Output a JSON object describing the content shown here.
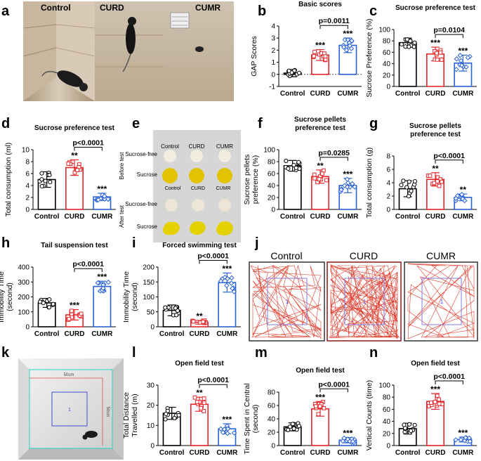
{
  "colors": {
    "control": "#000000",
    "curd": "#e8262a",
    "cumr": "#2a62d8",
    "track": "#e03a2a",
    "zone": "#7d7ddc",
    "gold": "#e8c000"
  },
  "figure": {
    "panel_letters": [
      "a",
      "b",
      "c",
      "d",
      "e",
      "f",
      "g",
      "h",
      "i",
      "j",
      "k",
      "l",
      "m",
      "n"
    ],
    "a": {
      "labels": [
        "Control",
        "CURD",
        "CUMR"
      ],
      "icon": "mouse-cage-photo"
    },
    "e": {
      "columns": [
        "Control",
        "CURD",
        "CUMR"
      ],
      "rows": [
        "Sucrose-free",
        "Sucrose",
        "Sucrose-free",
        "Sucrose"
      ],
      "groups": [
        "Before test",
        "After test"
      ],
      "icon": "sucrose-pellet-photo"
    },
    "j": {
      "labels": [
        "Control",
        "CURD",
        "CUMR"
      ],
      "zone_label": "1",
      "icon": "open-field-track"
    },
    "k": {
      "width_label": "50cm",
      "height_label": "50cm",
      "zone_label": "1",
      "icon": "open-field-arena-photo"
    }
  },
  "chart_data": [
    {
      "id": "b",
      "type": "bar",
      "title": "Basic  scores",
      "ylabel": "GAP Scores",
      "categories": [
        "Control",
        "CURD",
        "CUMR"
      ],
      "values": [
        0.1,
        1.6,
        2.4
      ],
      "errors": [
        0.3,
        0.45,
        0.6
      ],
      "ylim": [
        -1,
        4
      ],
      "yticks": [
        "-1",
        "0",
        "1",
        "2",
        "3",
        "4"
      ],
      "sig": [
        "",
        "***",
        "***"
      ],
      "bracket": {
        "label": "p=0.0011",
        "from": 1,
        "to": 2
      },
      "dotted_zero": true
    },
    {
      "id": "c",
      "type": "bar",
      "title": "Sucrose preference test",
      "ylabel": "Sucrose Preference (%)",
      "categories": [
        "Control",
        "CURD",
        "CUMR"
      ],
      "values": [
        77,
        57,
        41
      ],
      "errors": [
        8,
        12,
        14
      ],
      "ylim": [
        0,
        100
      ],
      "yticks": [
        "0",
        "20",
        "40",
        "60",
        "80",
        "100"
      ],
      "sig": [
        "",
        "***",
        "***"
      ],
      "bracket": {
        "label": "p=0.0104",
        "from": 1,
        "to": 2
      }
    },
    {
      "id": "d",
      "type": "bar",
      "title": "Sucrose preference test",
      "ylabel": "Total consumption (ml)",
      "categories": [
        "Control",
        "CURD",
        "CUMR"
      ],
      "values": [
        5.0,
        7.0,
        2.1
      ],
      "errors": [
        1.3,
        1.3,
        0.6
      ],
      "ylim": [
        0,
        10
      ],
      "yticks": [
        "0",
        "2",
        "4",
        "6",
        "8",
        "10"
      ],
      "sig": [
        "",
        "**",
        "***"
      ],
      "bracket": {
        "label": "p<0.0001",
        "from": 1,
        "to": 2
      }
    },
    {
      "id": "f",
      "type": "bar",
      "title": "Sucrose pellets\npreference test",
      "ylabel": "Sucrose pellets\npreference (%)",
      "categories": [
        "Control",
        "CURD",
        "CUMR"
      ],
      "values": [
        73,
        55,
        40
      ],
      "errors": [
        9,
        11,
        12
      ],
      "ylim": [
        0,
        100
      ],
      "yticks": [
        "0",
        "20",
        "40",
        "60",
        "80",
        "100"
      ],
      "sig": [
        "",
        "**",
        "***"
      ],
      "bracket": {
        "label": "p=0.0285",
        "from": 1,
        "to": 2
      }
    },
    {
      "id": "g",
      "type": "bar",
      "title": "Sucrose pellets\npreference test",
      "ylabel": "Total consumption (g)",
      "categories": [
        "Control",
        "CURD",
        "CUMR"
      ],
      "values": [
        3.1,
        4.5,
        1.8
      ],
      "errors": [
        1.2,
        1.0,
        0.5
      ],
      "ylim": [
        0,
        8
      ],
      "yticks": [
        "0",
        "2",
        "4",
        "6",
        "8"
      ],
      "sig": [
        "",
        "**",
        "**"
      ],
      "bracket": {
        "label": "p<0.0001",
        "from": 1,
        "to": 2
      }
    },
    {
      "id": "h",
      "type": "bar",
      "title": "Tail suspension test",
      "ylabel": "Immobility Time\n(second)",
      "categories": [
        "Control",
        "CURD",
        "CUMR"
      ],
      "values": [
        160,
        80,
        270
      ],
      "errors": [
        30,
        35,
        35
      ],
      "ylim": [
        0,
        400
      ],
      "yticks": [
        "0",
        "100",
        "200",
        "300",
        "400"
      ],
      "sig": [
        "",
        "***",
        "***"
      ],
      "bracket": {
        "label": "p<0.0001",
        "from": 1,
        "to": 2
      }
    },
    {
      "id": "i",
      "type": "bar",
      "title": "Forced swimming test",
      "ylabel": "Immobility Time\n(second)",
      "categories": [
        "Control",
        "CURD",
        "CUMR"
      ],
      "values": [
        55,
        15,
        148
      ],
      "errors": [
        18,
        6,
        32
      ],
      "ylim": [
        0,
        200
      ],
      "yticks": [
        "0",
        "50",
        "100",
        "150",
        "200"
      ],
      "sig": [
        "",
        "**",
        "***"
      ],
      "bracket": {
        "label": "p<0.0001",
        "from": 1,
        "to": 2
      }
    },
    {
      "id": "l",
      "type": "bar",
      "title": "Open field  test",
      "ylabel": "Total Distance\nTravelled (m)",
      "categories": [
        "Control",
        "CURD",
        "CUMR"
      ],
      "values": [
        16,
        20.5,
        8.3
      ],
      "errors": [
        3,
        3.5,
        2.5
      ],
      "ylim": [
        0,
        30
      ],
      "yticks": [
        "0",
        "10",
        "20",
        "30"
      ],
      "sig": [
        "",
        "**",
        "***"
      ],
      "bracket": {
        "label": "p<0.0001",
        "from": 1,
        "to": 2
      }
    },
    {
      "id": "m",
      "type": "bar",
      "title": "Open field  test",
      "ylabel": "Time Spent in Central\n(second)",
      "categories": [
        "Control",
        "CURD",
        "CUMR"
      ],
      "values": [
        28,
        55,
        8
      ],
      "errors": [
        6,
        11,
        4
      ],
      "ylim": [
        0,
        80
      ],
      "yticks": [
        "0",
        "20",
        "40",
        "60",
        "80"
      ],
      "sig": [
        "",
        "***",
        "***"
      ],
      "bracket": {
        "label": "p<0.0001",
        "from": 1,
        "to": 2
      }
    },
    {
      "id": "n",
      "type": "bar",
      "title": "Open field  test",
      "ylabel": "Vertical Counts (time)",
      "categories": [
        "Control",
        "CURD",
        "CUMR"
      ],
      "values": [
        28,
        73,
        10
      ],
      "errors": [
        9,
        13,
        4
      ],
      "ylim": [
        0,
        100
      ],
      "yticks": [
        "0",
        "20",
        "40",
        "60",
        "80",
        "100"
      ],
      "sig": [
        "",
        "***",
        "***"
      ],
      "bracket": {
        "label": "p<0.0001",
        "from": 1,
        "to": 2
      }
    }
  ]
}
